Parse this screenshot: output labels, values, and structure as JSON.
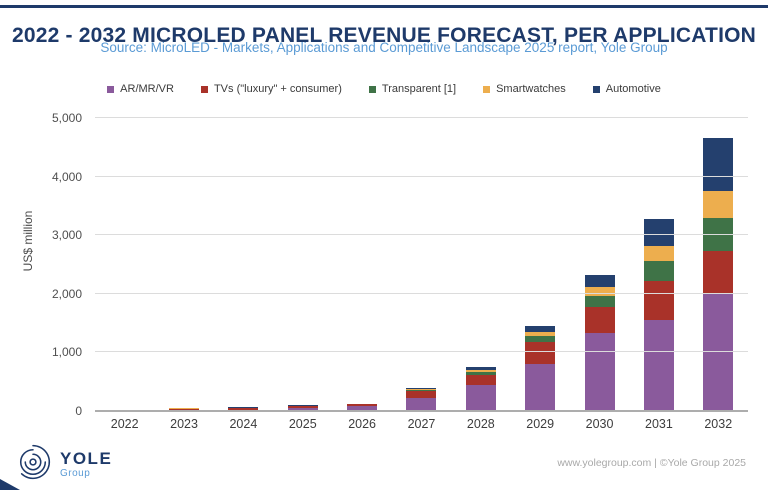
{
  "page": {
    "title": "2022 - 2032 MICROLED PANEL REVENUE FORECAST, PER APPLICATION",
    "subtitle": "Source: MicroLED - Markets, Applications and Competitive Landscape 2025 report, Yole Group",
    "footer": {
      "logo_text": "YOLE",
      "logo_subtext": "Group",
      "credit": "www.yolegroup.com | ©Yole Group 2025"
    }
  },
  "colors": {
    "accent_navy": "#1e3a6a",
    "subtitle_blue": "#5b9bd5",
    "gridline": "#dcdcdc",
    "axis_text": "#4f4f4f"
  },
  "chart_data": {
    "type": "bar",
    "stacked": true,
    "title": "2022 - 2032 MicroLED panel revenue forecast, per application",
    "ylabel": "US$ million",
    "ylim": [
      0,
      5000
    ],
    "ytick_interval": 1000,
    "yticks": [
      "0",
      "1,000",
      "2,000",
      "3,000",
      "4,000",
      "5,000"
    ],
    "grid": true,
    "legend_position": "top",
    "categories": [
      "2022",
      "2023",
      "2024",
      "2025",
      "2026",
      "2027",
      "2028",
      "2029",
      "2030",
      "2031",
      "2032"
    ],
    "series": [
      {
        "name": "AR/MR/VR",
        "color": "#8a5a9c",
        "values": [
          8,
          15,
          20,
          48,
          85,
          215,
          450,
          805,
          1330,
          1550,
          2000
        ]
      },
      {
        "name": "TVs (\"luxury\" + consumer)",
        "color": "#a93229",
        "values": [
          12,
          25,
          32,
          38,
          28,
          135,
          170,
          380,
          450,
          665,
          730
        ]
      },
      {
        "name": "Transparent [1]",
        "color": "#3f7347",
        "values": [
          2,
          3,
          4,
          4,
          3,
          15,
          45,
          95,
          185,
          345,
          565
        ]
      },
      {
        "name": "Smartwatches",
        "color": "#edae4e",
        "values": [
          3,
          3,
          3,
          4,
          3,
          12,
          35,
          70,
          160,
          250,
          460
        ]
      },
      {
        "name": "Automotive",
        "color": "#24406e",
        "values": [
          1,
          1,
          2,
          2,
          2,
          8,
          60,
          100,
          195,
          460,
          905
        ]
      }
    ],
    "totals_approx": [
      26,
      47,
      61,
      96,
      121,
      385,
      760,
      1450,
      2320,
      3270,
      4660
    ]
  }
}
